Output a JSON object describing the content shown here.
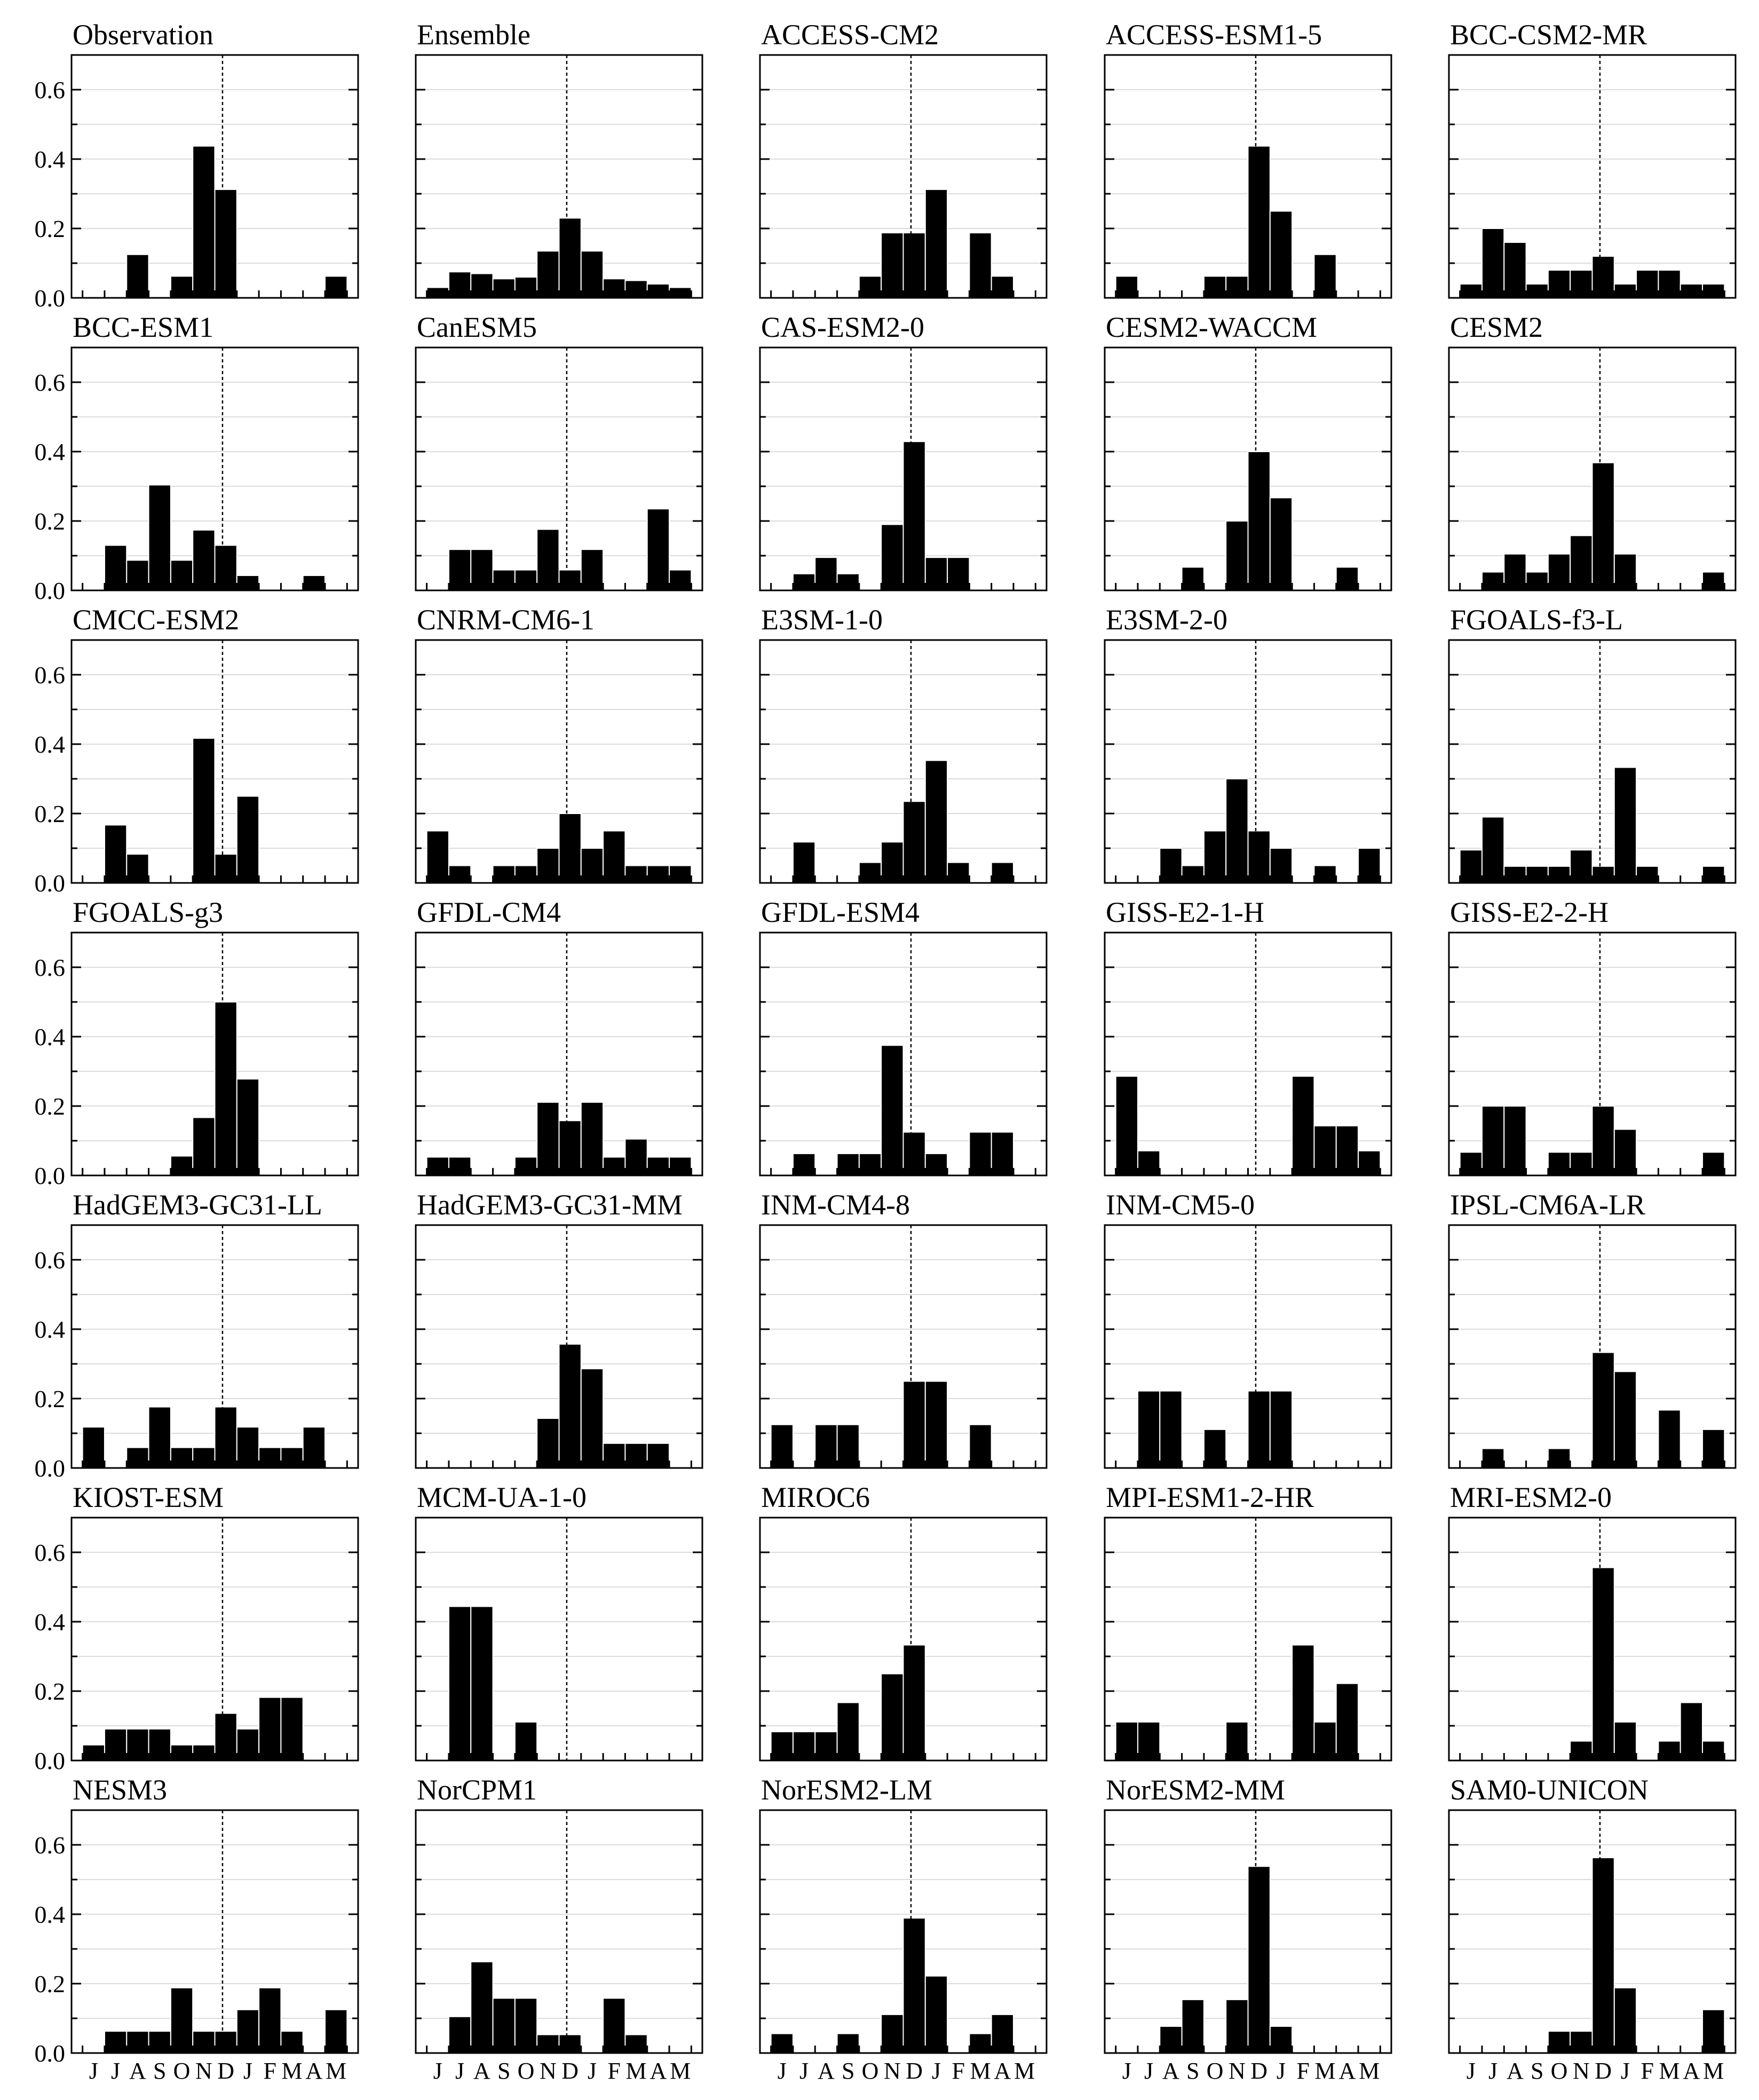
{
  "chart_data": [
    {
      "type": "bar",
      "title": "Observation",
      "values": [
        0,
        0,
        0.125,
        0,
        0.0625,
        0.4375,
        0.3125,
        0,
        0,
        0,
        0,
        0.0625,
        0
      ]
    },
    {
      "type": "bar",
      "title": "Ensemble",
      "values": [
        0.03,
        0.075,
        0.07,
        0.055,
        0.06,
        0.135,
        0.23,
        0.135,
        0.055,
        0.05,
        0.04,
        0.03,
        0
      ]
    },
    {
      "type": "bar",
      "title": "ACCESS-CM2",
      "values": [
        0,
        0,
        0,
        0,
        0.0625,
        0.1875,
        0.1875,
        0.3125,
        0,
        0.1875,
        0.0625,
        0,
        0
      ]
    },
    {
      "type": "bar",
      "title": "ACCESS-ESM1-5",
      "values": [
        0.0625,
        0,
        0,
        0,
        0.0625,
        0.0625,
        0.4375,
        0.25,
        0,
        0.125,
        0,
        0,
        0
      ]
    },
    {
      "type": "bar",
      "title": "BCC-CSM2-MR",
      "values": [
        0.04,
        0.2,
        0.16,
        0.04,
        0.08,
        0.08,
        0.12,
        0.04,
        0.08,
        0.08,
        0.04,
        0.04,
        0
      ]
    },
    {
      "type": "bar",
      "title": "BCC-ESM1",
      "values": [
        0,
        0.13,
        0.087,
        0.304,
        0.087,
        0.174,
        0.13,
        0.043,
        0,
        0,
        0.043,
        0,
        0
      ]
    },
    {
      "type": "bar",
      "title": "CanESM5",
      "values": [
        0,
        0.118,
        0.118,
        0.059,
        0.059,
        0.176,
        0.059,
        0.118,
        0,
        0,
        0.235,
        0.059,
        0
      ]
    },
    {
      "type": "bar",
      "title": "CAS-ESM2-0",
      "values": [
        0,
        0.048,
        0.095,
        0.048,
        0,
        0.19,
        0.429,
        0.095,
        0.095,
        0,
        0,
        0,
        0
      ]
    },
    {
      "type": "bar",
      "title": "CESM2-WACCM",
      "values": [
        0,
        0,
        0,
        0.067,
        0,
        0.2,
        0.4,
        0.267,
        0,
        0,
        0.067,
        0,
        0
      ]
    },
    {
      "type": "bar",
      "title": "CESM2",
      "values": [
        0,
        0.053,
        0.105,
        0.053,
        0.105,
        0.158,
        0.368,
        0.105,
        0,
        0,
        0,
        0.053,
        0
      ]
    },
    {
      "type": "bar",
      "title": "CMCC-ESM2",
      "values": [
        0,
        0.167,
        0.083,
        0,
        0,
        0.417,
        0.083,
        0.25,
        0,
        0,
        0,
        0,
        0
      ]
    },
    {
      "type": "bar",
      "title": "CNRM-CM6-1",
      "values": [
        0.15,
        0.05,
        0,
        0.05,
        0.05,
        0.1,
        0.2,
        0.1,
        0.15,
        0.05,
        0.05,
        0.05,
        0
      ]
    },
    {
      "type": "bar",
      "title": "E3SM-1-0",
      "values": [
        0,
        0.118,
        0,
        0,
        0.059,
        0.118,
        0.235,
        0.353,
        0.059,
        0,
        0.059,
        0,
        0
      ]
    },
    {
      "type": "bar",
      "title": "E3SM-2-0",
      "values": [
        0,
        0,
        0.1,
        0.05,
        0.15,
        0.3,
        0.15,
        0.1,
        0,
        0.05,
        0,
        0.1,
        0
      ]
    },
    {
      "type": "bar",
      "title": "FGOALS-f3-L",
      "values": [
        0.095,
        0.19,
        0.048,
        0.048,
        0.048,
        0.095,
        0.048,
        0.333,
        0.048,
        0,
        0,
        0.048,
        0
      ]
    },
    {
      "type": "bar",
      "title": "FGOALS-g3",
      "values": [
        0,
        0,
        0,
        0,
        0.056,
        0.167,
        0.5,
        0.278,
        0,
        0,
        0,
        0,
        0
      ]
    },
    {
      "type": "bar",
      "title": "GFDL-CM4",
      "values": [
        0.053,
        0.053,
        0,
        0,
        0.053,
        0.211,
        0.158,
        0.211,
        0.053,
        0.105,
        0.053,
        0.053,
        0
      ]
    },
    {
      "type": "bar",
      "title": "GFDL-ESM4",
      "values": [
        0,
        0.063,
        0,
        0.063,
        0.063,
        0.375,
        0.125,
        0.063,
        0,
        0.125,
        0.125,
        0,
        0
      ]
    },
    {
      "type": "bar",
      "title": "GISS-E2-1-H",
      "values": [
        0.286,
        0.071,
        0,
        0,
        0,
        0,
        0,
        0,
        0.286,
        0.143,
        0.143,
        0.071,
        0
      ]
    },
    {
      "type": "bar",
      "title": "GISS-E2-2-H",
      "values": [
        0.067,
        0.2,
        0.2,
        0,
        0.067,
        0.067,
        0.2,
        0.133,
        0,
        0,
        0,
        0.067,
        0
      ]
    },
    {
      "type": "bar",
      "title": "HadGEM3-GC31-LL",
      "values": [
        0.118,
        0,
        0.059,
        0.176,
        0.059,
        0.059,
        0.176,
        0.118,
        0.059,
        0.059,
        0.118,
        0,
        0
      ]
    },
    {
      "type": "bar",
      "title": "HadGEM3-GC31-MM",
      "values": [
        0,
        0,
        0,
        0,
        0,
        0.143,
        0.357,
        0.286,
        0.071,
        0.071,
        0.071,
        0,
        0
      ]
    },
    {
      "type": "bar",
      "title": "INM-CM4-8",
      "values": [
        0.125,
        0,
        0.125,
        0.125,
        0,
        0,
        0.25,
        0.25,
        0,
        0.125,
        0,
        0,
        0
      ]
    },
    {
      "type": "bar",
      "title": "INM-CM5-0",
      "values": [
        0,
        0.222,
        0.222,
        0,
        0.111,
        0,
        0.222,
        0.222,
        0,
        0,
        0,
        0,
        0
      ]
    },
    {
      "type": "bar",
      "title": "IPSL-CM6A-LR",
      "values": [
        0,
        0.056,
        0,
        0,
        0.056,
        0,
        0.333,
        0.278,
        0,
        0.167,
        0,
        0.111,
        0
      ]
    },
    {
      "type": "bar",
      "title": "KIOST-ESM",
      "values": [
        0.045,
        0.091,
        0.091,
        0.091,
        0.045,
        0.045,
        0.136,
        0.091,
        0.182,
        0.182,
        0,
        0,
        0
      ]
    },
    {
      "type": "bar",
      "title": "MCM-UA-1-0",
      "values": [
        0,
        0.444,
        0.444,
        0,
        0.111,
        0,
        0,
        0,
        0,
        0,
        0,
        0,
        0
      ]
    },
    {
      "type": "bar",
      "title": "MIROC6",
      "values": [
        0.083,
        0.083,
        0.083,
        0.167,
        0,
        0.25,
        0.333,
        0,
        0,
        0,
        0,
        0,
        0
      ]
    },
    {
      "type": "bar",
      "title": "MPI-ESM1-2-HR",
      "values": [
        0.111,
        0.111,
        0,
        0,
        0,
        0.111,
        0,
        0,
        0.333,
        0.111,
        0.222,
        0,
        0
      ]
    },
    {
      "type": "bar",
      "title": "MRI-ESM2-0",
      "values": [
        0,
        0,
        0,
        0,
        0,
        0.056,
        0.556,
        0.111,
        0,
        0.056,
        0.167,
        0.056,
        0
      ]
    },
    {
      "type": "bar",
      "title": "NESM3",
      "values": [
        0,
        0.063,
        0.063,
        0.063,
        0.188,
        0.063,
        0.063,
        0.125,
        0.188,
        0.063,
        0,
        0.125,
        0
      ]
    },
    {
      "type": "bar",
      "title": "NorCPM1",
      "values": [
        0,
        0.105,
        0.263,
        0.158,
        0.158,
        0.053,
        0.053,
        0,
        0.158,
        0.053,
        0,
        0,
        0
      ]
    },
    {
      "type": "bar",
      "title": "NorESM2-LM",
      "values": [
        0.056,
        0,
        0,
        0.056,
        0,
        0.111,
        0.389,
        0.222,
        0,
        0.056,
        0.111,
        0,
        0
      ]
    },
    {
      "type": "bar",
      "title": "NorESM2-MM",
      "values": [
        0,
        0,
        0.077,
        0.154,
        0,
        0.154,
        0.538,
        0.077,
        0,
        0,
        0,
        0,
        0
      ]
    },
    {
      "type": "bar",
      "title": "SAM0-UNICON",
      "values": [
        0,
        0,
        0,
        0,
        0.063,
        0.063,
        0.563,
        0.188,
        0,
        0,
        0,
        0.125,
        0
      ]
    }
  ],
  "axes": {
    "ylim": [
      0,
      0.7
    ],
    "yticks": [
      "0.0",
      "0.2",
      "0.4",
      "0.6"
    ],
    "month_labels": [
      "J",
      "J",
      "A",
      "S",
      "O",
      "N",
      "D",
      "J",
      "F",
      "M",
      "A",
      "M"
    ],
    "reference_line_at": "December (dashed vertical line)"
  }
}
